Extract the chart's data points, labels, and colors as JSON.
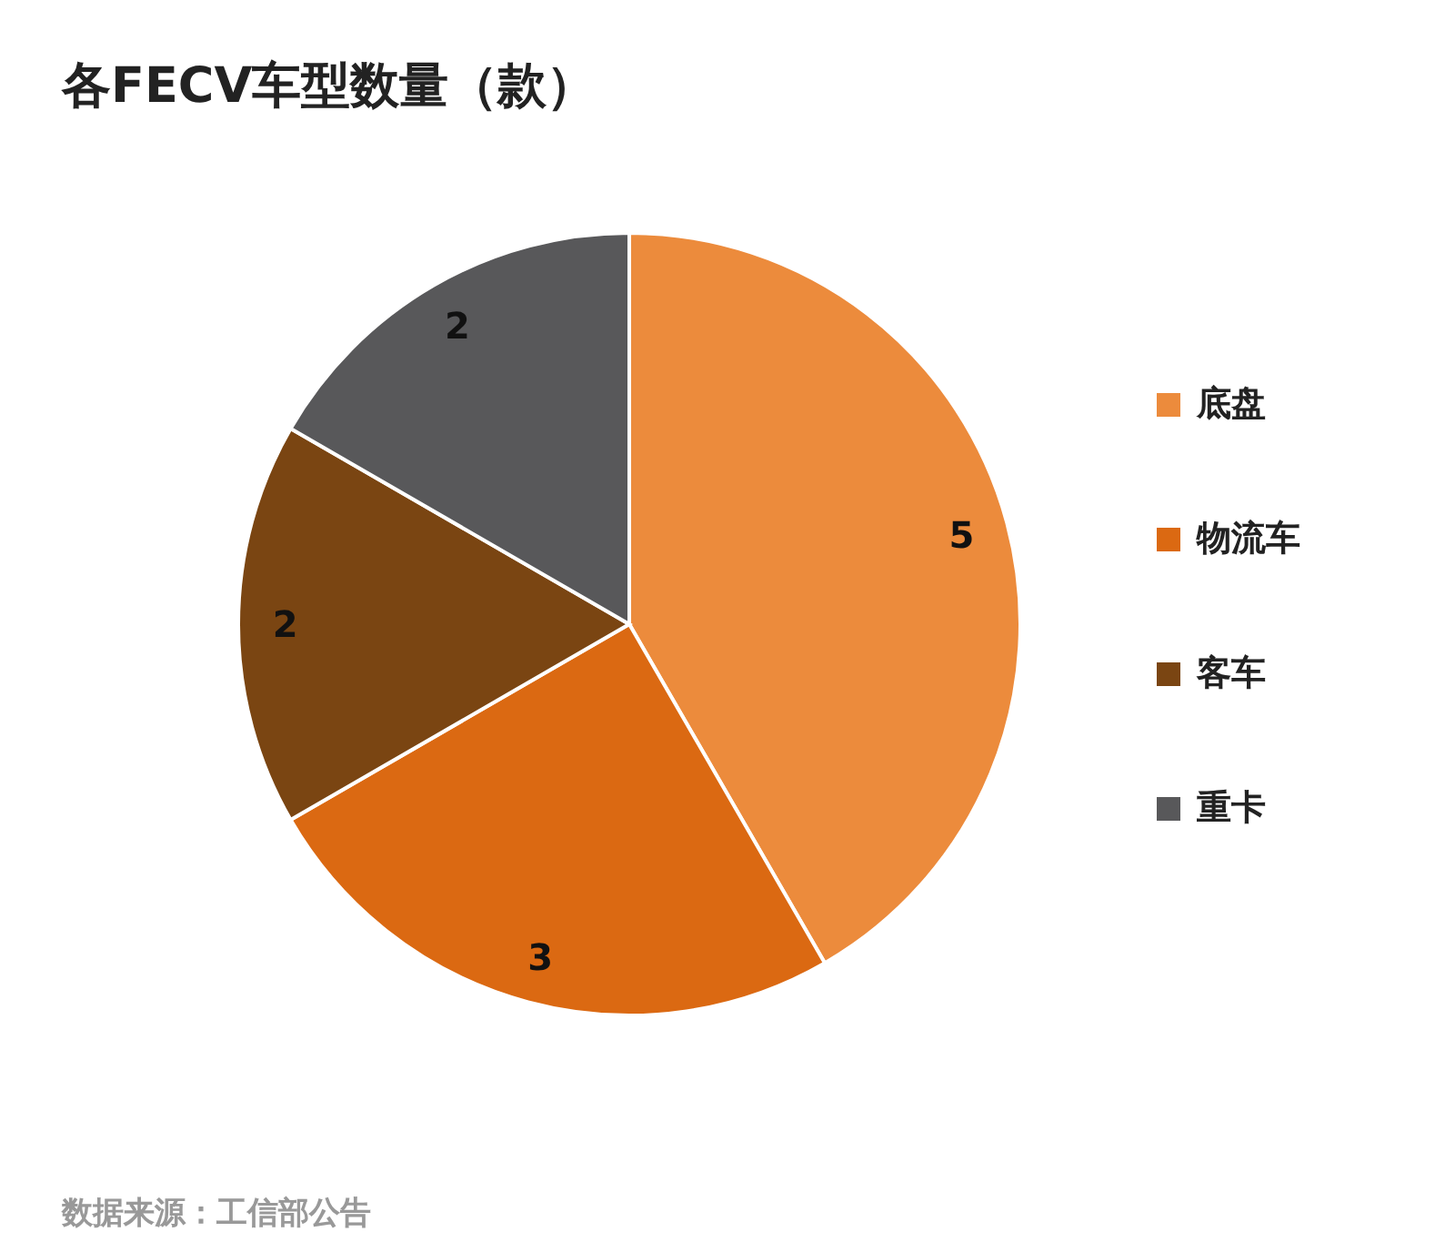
{
  "chart_data": {
    "type": "pie",
    "title": "各FECV车型数量（款）",
    "categories": [
      "底盘",
      "物流车",
      "客车",
      "重卡"
    ],
    "values": [
      5,
      3,
      2,
      2
    ],
    "colors": [
      "#ec8b3c",
      "#db6912",
      "#7a4512",
      "#58585a"
    ],
    "data_labels": true,
    "legend": "right",
    "annotations": [
      "数据来源：工信部公告"
    ]
  }
}
